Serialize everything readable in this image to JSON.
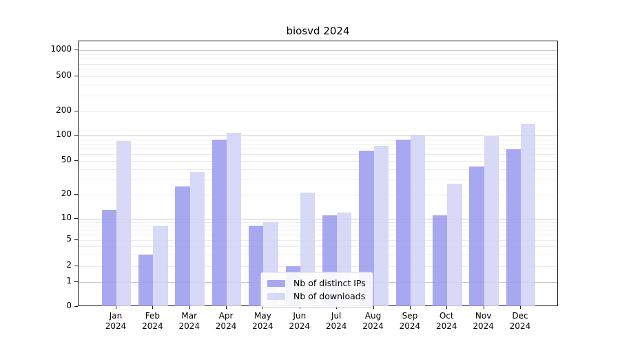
{
  "chart_data": {
    "type": "bar",
    "title": "biosvd 2024",
    "scale": "symlog-like (0 then log 1..1000)",
    "grid": true,
    "legend_position": "lower-center-inside",
    "categories": [
      "Jan",
      "Feb",
      "Mar",
      "Apr",
      "May",
      "Jun",
      "Jul",
      "Aug",
      "Sep",
      "Oct",
      "Nov",
      "Dec"
    ],
    "category_year": "2024",
    "y_ticks": [
      0,
      1,
      2,
      5,
      10,
      20,
      50,
      100,
      200,
      500,
      1000
    ],
    "ylim": [
      0,
      1280
    ],
    "series": [
      {
        "name": "Nb of distinct IPs",
        "color": "#9c9cef",
        "values": [
          13,
          3,
          25,
          90,
          8,
          2,
          11,
          66,
          90,
          11,
          43,
          69
        ]
      },
      {
        "name": "Nb of downloads",
        "color": "#d3d3f6",
        "values": [
          86,
          8,
          37,
          108,
          9,
          21,
          12,
          76,
          103,
          27,
          100,
          140
        ]
      }
    ],
    "colors": {
      "grid_major": "#c8c8c8",
      "grid_minor": "#ebebeb",
      "axis": "#1a1a1a",
      "text": "#000000"
    }
  }
}
